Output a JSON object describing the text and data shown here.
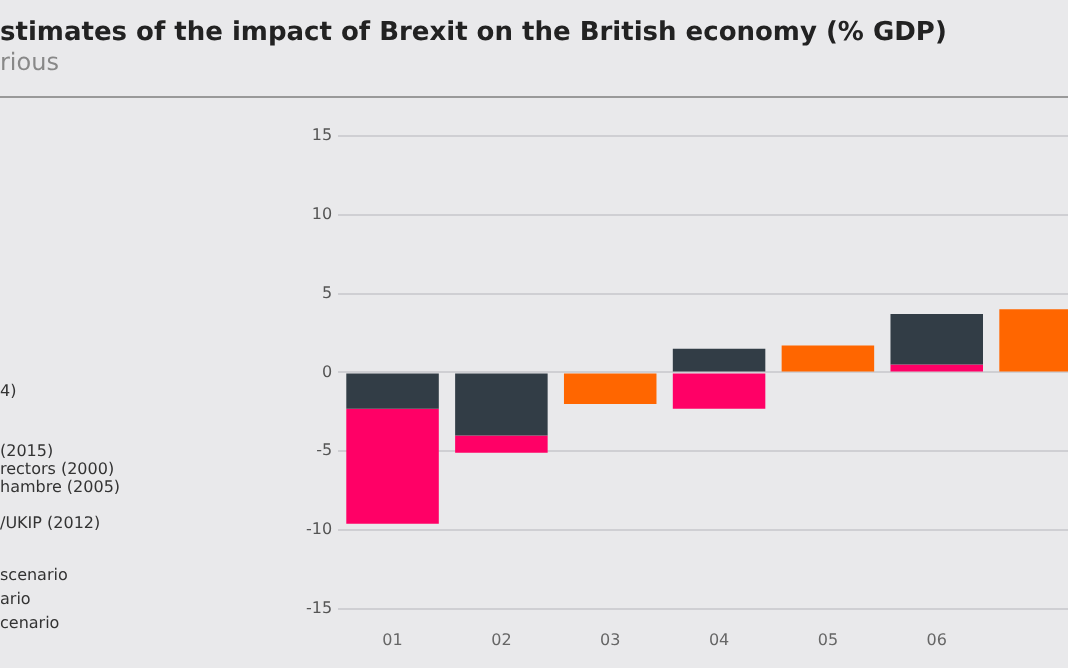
{
  "chart_data": {
    "type": "bar",
    "title": "stimates of the impact of Brexit on the British economy (% GDP)",
    "subtitle": "rious",
    "categories": [
      "01",
      "02",
      "03",
      "04",
      "05",
      "06",
      null
    ],
    "series": [
      {
        "color": "#323d46",
        "base": [
          0,
          0,
          null,
          0,
          null,
          0.5,
          null
        ],
        "values": [
          -2.3,
          -4.0,
          null,
          1.5,
          null,
          3.2,
          null
        ]
      },
      {
        "color": "#ff0066",
        "base": [
          -2.3,
          -4.0,
          null,
          0,
          null,
          0,
          null
        ],
        "values": [
          -7.3,
          -1.1,
          null,
          -2.3,
          null,
          0.5,
          null
        ]
      },
      {
        "color": "#ff6600",
        "base": [
          null,
          null,
          0,
          null,
          0,
          null,
          0
        ],
        "values": [
          null,
          null,
          -2.0,
          null,
          1.7,
          null,
          4.0
        ]
      }
    ],
    "ylim": [
      -15,
      15
    ],
    "yticks": [
      -15,
      -10,
      -5,
      0,
      5,
      10,
      15
    ],
    "grid": "y",
    "legend": false,
    "annotations": [
      "4)",
      "(2015)",
      "rectors (2000)",
      "hambre (2005)",
      "/UKIP (2012)",
      "scenario",
      "ario",
      "cenario"
    ]
  }
}
